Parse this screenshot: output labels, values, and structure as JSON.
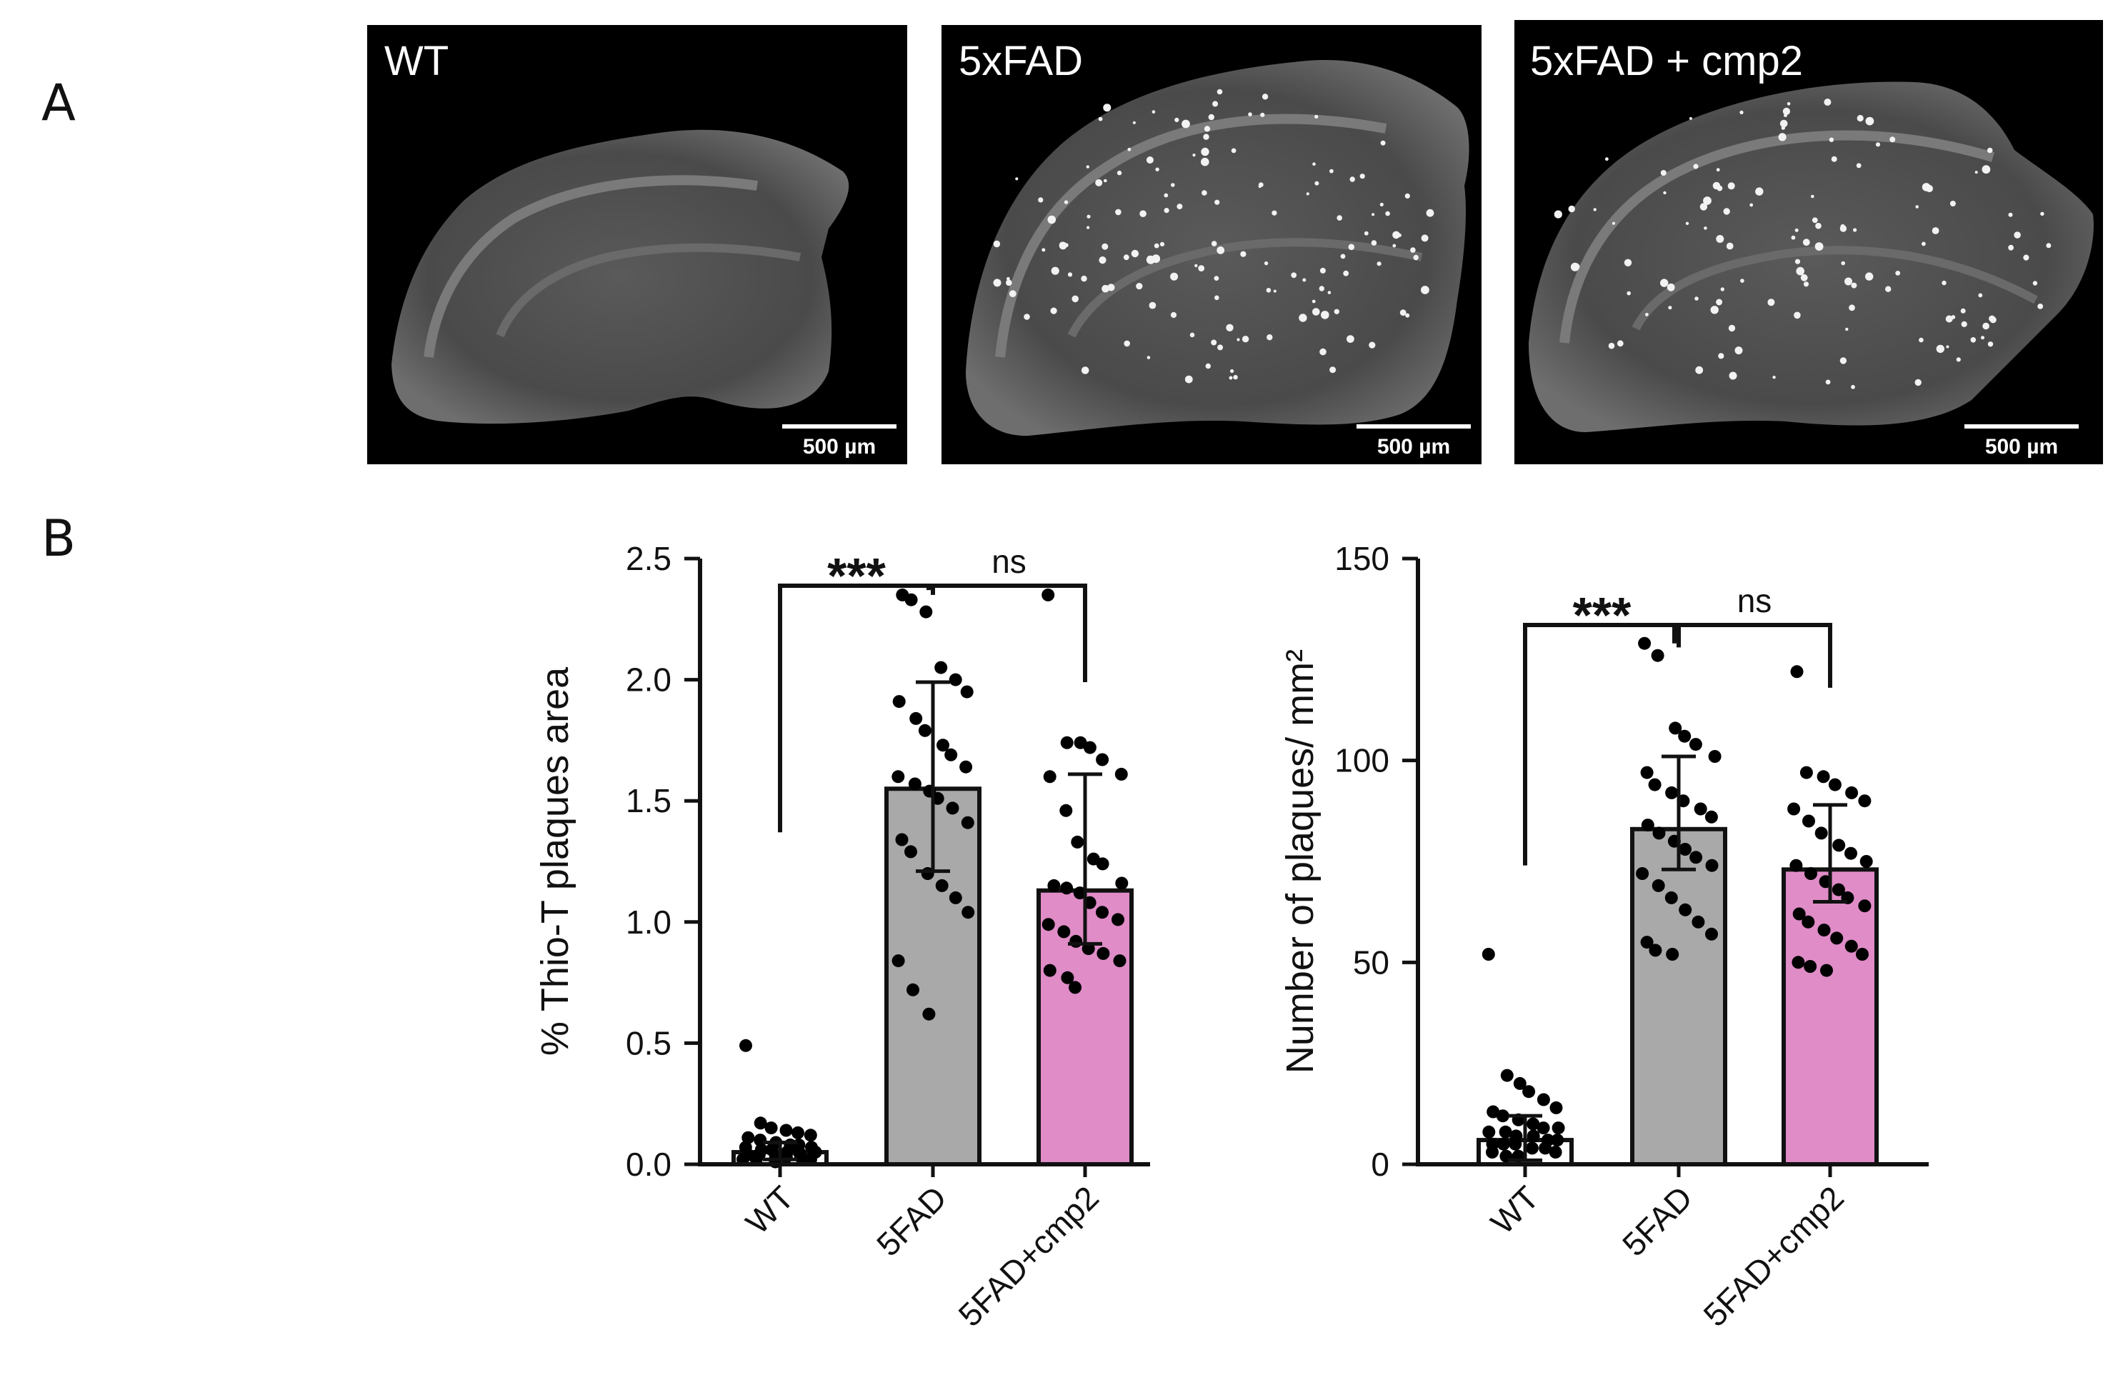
{
  "figure": {
    "panel_a_label": "A",
    "panel_b_label": "B"
  },
  "micrographs": [
    {
      "label": "WT",
      "scale_bar": "500 µm",
      "plaque_density": 0
    },
    {
      "label": "5xFAD",
      "scale_bar": "500 µm",
      "plaque_density": 1
    },
    {
      "label": "5xFAD + cmp2",
      "scale_bar": "500 µm",
      "plaque_density": 0.85
    }
  ],
  "colors": {
    "wt_bar": "#ffffff",
    "fad_bar": "#a9a9a9",
    "cmp2_bar": "#df8cc7",
    "axis": "#111111",
    "dot": "#000000"
  },
  "chart_data": [
    {
      "type": "bar",
      "title": "",
      "xlabel": "",
      "ylabel": "% Thio-T plaques area",
      "ylim": [
        0,
        2.5
      ],
      "yticks": [
        0,
        0.5,
        1,
        1.5,
        2,
        2.5
      ],
      "ytick_labels": [
        "0.0",
        "0.5",
        "1.0",
        "1.5",
        "2.0",
        "2.5"
      ],
      "categories": [
        "WT",
        "5FAD",
        "5FAD+cmp2"
      ],
      "values": [
        0.05,
        1.55,
        1.13
      ],
      "error_low": [
        0.02,
        1.21,
        0.91
      ],
      "error_high": [
        0.09,
        1.99,
        1.61
      ],
      "points": [
        [
          0.49,
          0.17,
          0.15,
          0.14,
          0.13,
          0.12,
          0.11,
          0.1,
          0.09,
          0.08,
          0.08,
          0.07,
          0.07,
          0.06,
          0.06,
          0.05,
          0.05,
          0.05,
          0.04,
          0.04,
          0.03,
          0.03,
          0.03,
          0.02,
          0.02,
          0.02,
          0.01
        ],
        [
          2.35,
          2.33,
          2.28,
          2.05,
          2.0,
          1.95,
          1.91,
          1.84,
          1.79,
          1.73,
          1.69,
          1.64,
          1.6,
          1.57,
          1.54,
          1.51,
          1.47,
          1.41,
          1.34,
          1.29,
          1.2,
          1.15,
          1.1,
          1.04,
          0.84,
          0.72,
          0.62
        ],
        [
          2.35,
          1.74,
          1.74,
          1.72,
          1.67,
          1.61,
          1.6,
          1.46,
          1.33,
          1.26,
          1.24,
          1.16,
          1.15,
          1.14,
          1.12,
          1.08,
          1.04,
          1.01,
          0.99,
          0.96,
          0.92,
          0.89,
          0.87,
          0.84,
          0.8,
          0.77,
          0.73
        ]
      ],
      "comparisons": [
        {
          "from": 0,
          "to": 1,
          "label": "***"
        },
        {
          "from": 1,
          "to": 2,
          "label": "ns"
        }
      ]
    },
    {
      "type": "bar",
      "title": "",
      "xlabel": "",
      "ylabel": "Number of plaques/ mm²",
      "ylim": [
        0,
        150
      ],
      "yticks": [
        0,
        50,
        100,
        150
      ],
      "ytick_labels": [
        "0",
        "50",
        "100",
        "150"
      ],
      "categories": [
        "WT",
        "5FAD",
        "5FAD+cmp2"
      ],
      "values": [
        6,
        83,
        73
      ],
      "error_low": [
        1,
        73,
        65
      ],
      "error_high": [
        12,
        101,
        89
      ],
      "points": [
        [
          52,
          22,
          20,
          18,
          16,
          14,
          13,
          12,
          11,
          10,
          9,
          9,
          8,
          8,
          7,
          7,
          6,
          6,
          5,
          5,
          5,
          4,
          4,
          3,
          3,
          2,
          2
        ],
        [
          129,
          126,
          108,
          106,
          104,
          101,
          97,
          94,
          92,
          90,
          88,
          86,
          84,
          82,
          80,
          78,
          76,
          74,
          72,
          69,
          66,
          63,
          60,
          57,
          55,
          53,
          52
        ],
        [
          122,
          97,
          96,
          94,
          92,
          90,
          88,
          85,
          82,
          79,
          77,
          75,
          74,
          72,
          70,
          68,
          66,
          64,
          62,
          60,
          58,
          56,
          54,
          52,
          50,
          49,
          48
        ]
      ],
      "comparisons": [
        {
          "from": 0,
          "to": 1,
          "label": "***"
        },
        {
          "from": 1,
          "to": 2,
          "label": "ns"
        }
      ]
    }
  ]
}
